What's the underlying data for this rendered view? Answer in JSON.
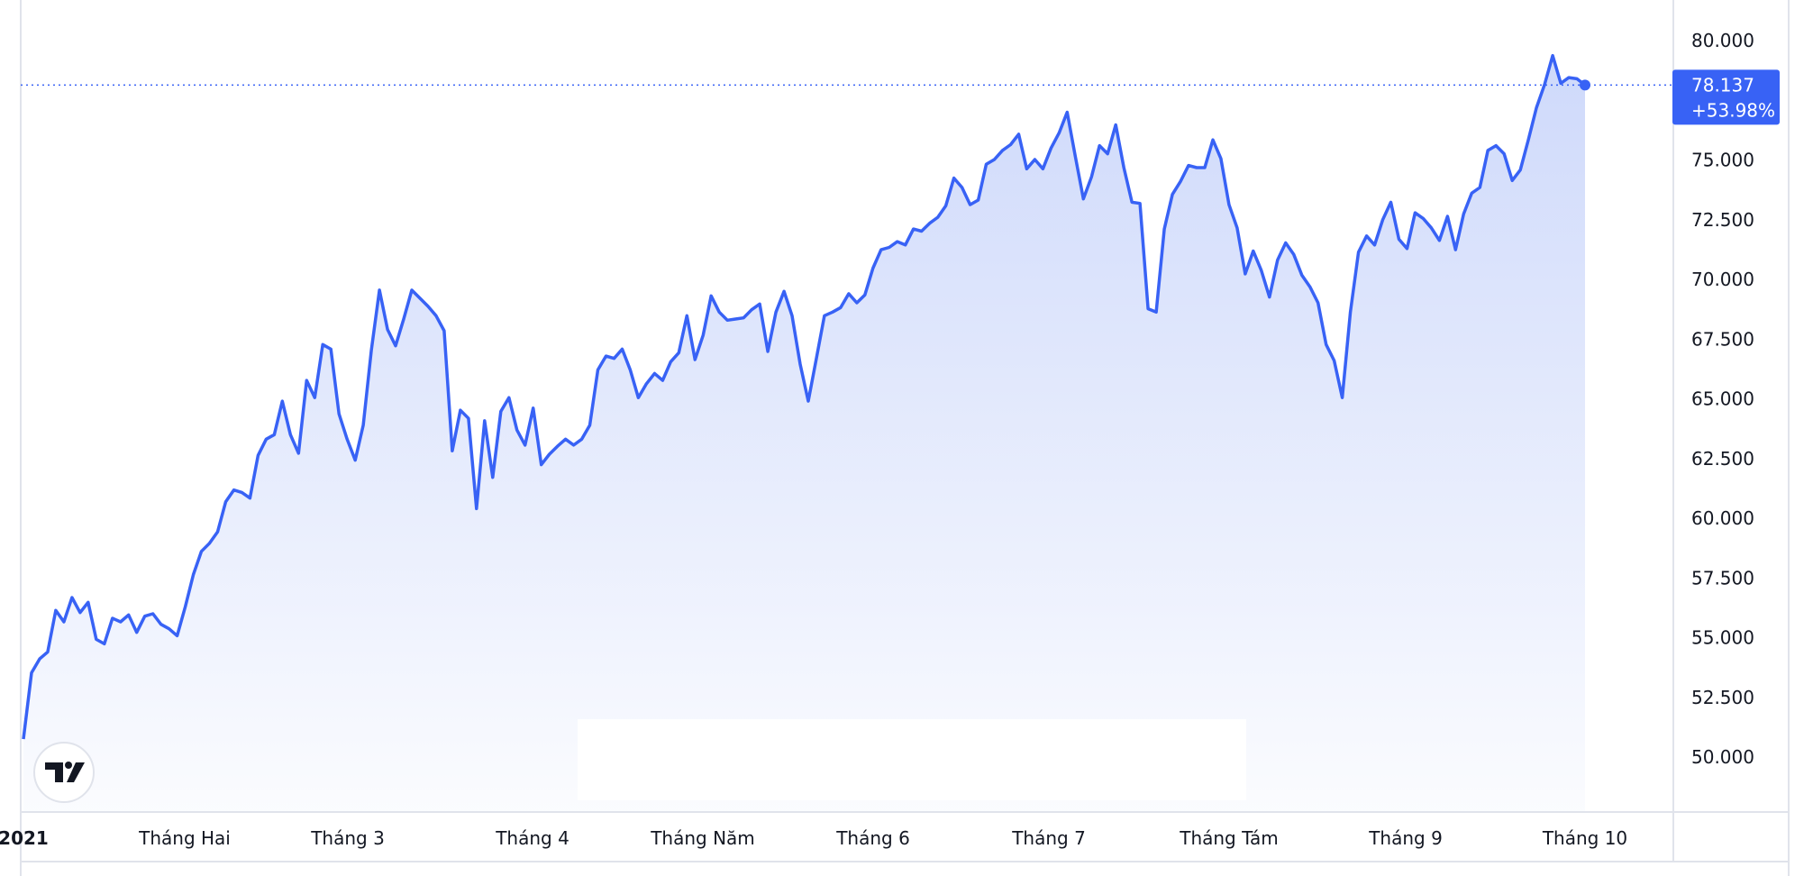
{
  "chart_data": {
    "type": "area",
    "title": "",
    "xlabel": "",
    "ylabel": "",
    "ylim": [
      48.5,
      81.5
    ],
    "y_ticks": [
      "80.000",
      "75.000",
      "72.500",
      "70.000",
      "67.500",
      "65.000",
      "62.500",
      "60.000",
      "57.500",
      "55.000",
      "52.500",
      "50.000"
    ],
    "x_tick_labels": [
      "2021",
      "Tháng Hai",
      "Tháng 3",
      "Tháng 4",
      "Tháng Năm",
      "Tháng 6",
      "Tháng 7",
      "Tháng Tám",
      "Tháng 9",
      "Tháng 10"
    ],
    "grid": false,
    "line_color": "#3862f5",
    "fill_color": "#c9d5fa",
    "last_value_label": "78.137",
    "last_change_label": "+53.98%",
    "values": [
      50.75,
      53.53,
      54.11,
      54.4,
      56.14,
      55.66,
      56.68,
      56.05,
      56.48,
      54.93,
      54.74,
      55.81,
      55.66,
      55.95,
      55.22,
      55.9,
      56.0,
      55.56,
      55.37,
      55.08,
      56.29,
      57.64,
      58.61,
      58.95,
      59.43,
      60.69,
      61.18,
      61.08,
      60.84,
      62.63,
      63.31,
      63.5,
      64.9,
      63.5,
      62.72,
      65.77,
      65.05,
      67.27,
      67.08,
      64.37,
      63.31,
      62.43,
      63.89,
      67.03,
      69.55,
      67.9,
      67.22,
      68.34,
      69.55,
      69.21,
      68.87,
      68.48,
      67.85,
      62.82,
      64.52,
      64.18,
      60.4,
      64.08,
      61.71,
      64.47,
      65.05,
      63.69,
      63.06,
      64.61,
      62.24,
      62.68,
      63.01,
      63.31,
      63.06,
      63.31,
      63.89,
      66.21,
      66.79,
      66.69,
      67.08,
      66.21,
      65.05,
      65.63,
      66.06,
      65.77,
      66.55,
      66.93,
      68.48,
      66.64,
      67.66,
      69.31,
      68.63,
      68.29,
      68.34,
      68.39,
      68.73,
      68.97,
      66.98,
      68.63,
      69.5,
      68.48,
      66.45,
      64.9,
      66.69,
      68.48,
      68.63,
      68.82,
      69.4,
      69.02,
      69.35,
      70.47,
      71.24,
      71.34,
      71.58,
      71.44,
      72.11,
      72.02,
      72.35,
      72.6,
      73.08,
      74.24,
      73.85,
      73.13,
      73.32,
      74.82,
      75.02,
      75.4,
      75.64,
      76.08,
      74.63,
      75.02,
      74.63,
      75.5,
      76.13,
      77.0,
      75.16,
      73.37,
      74.29,
      75.6,
      75.26,
      76.47,
      74.68,
      73.23,
      73.18,
      68.77,
      68.63,
      72.11,
      73.56,
      74.1,
      74.77,
      74.68,
      74.68,
      75.84,
      75.06,
      73.13,
      72.16,
      70.23,
      71.19,
      70.37,
      69.26,
      70.81,
      71.53,
      71.05,
      70.18,
      69.69,
      69.02,
      67.27,
      66.6,
      65.05,
      68.63,
      71.14,
      71.82,
      71.44,
      72.5,
      73.23,
      71.68,
      71.29,
      72.79,
      72.55,
      72.16,
      71.63,
      72.64,
      71.24,
      72.74,
      73.61,
      73.85,
      75.4,
      75.6,
      75.26,
      74.14,
      74.58,
      75.84,
      77.19,
      78.16,
      79.37,
      78.21,
      78.45,
      78.4,
      78.137
    ]
  }
}
